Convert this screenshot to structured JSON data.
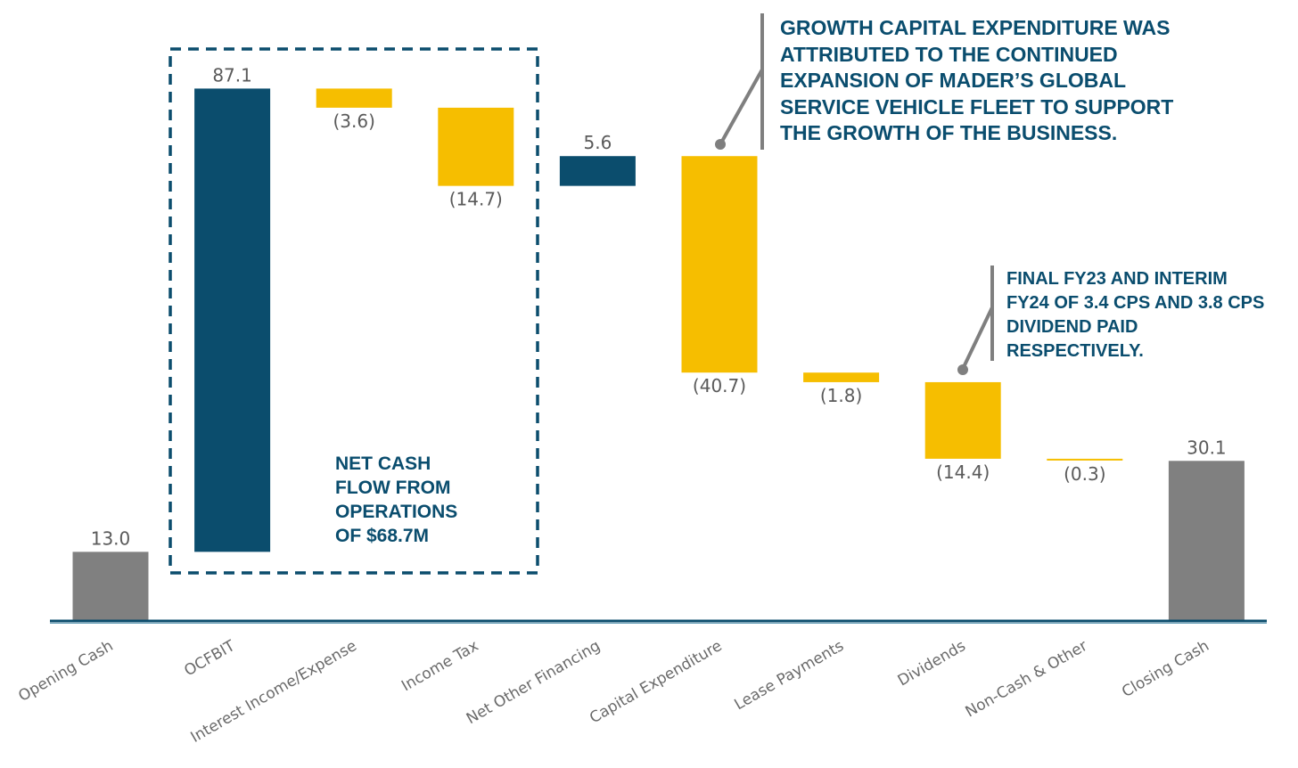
{
  "chart_data": {
    "type": "waterfall",
    "title": "",
    "xlabel": "",
    "ylabel": "",
    "ylim": [
      0,
      110
    ],
    "grid": false,
    "categories": [
      "Opening Cash",
      "OCFBIT",
      "Interest Income/Expense",
      "Income Tax",
      "Net Other Financing",
      "Capital Expenditure",
      "Lease Payments",
      "Dividends",
      "Non-Cash & Other",
      "Closing Cash"
    ],
    "values": [
      13.0,
      87.1,
      -3.6,
      -14.7,
      5.6,
      -40.7,
      -1.8,
      -14.4,
      -0.3,
      30.1
    ],
    "kinds": [
      "total",
      "increase",
      "decrease",
      "decrease",
      "increase",
      "decrease",
      "decrease",
      "decrease",
      "decrease",
      "total"
    ],
    "value_labels": [
      "13.0",
      "87.1",
      "(3.6)",
      "(14.7)",
      "5.6",
      "(40.7)",
      "(1.8)",
      "(14.4)",
      "(0.3)",
      "30.1"
    ],
    "colors": {
      "total": "#808080",
      "increase": "#0b4d6d",
      "decrease": "#f6be00",
      "axis": "#0b4d6d",
      "annotation": "#0b4d6d",
      "callout": "#7f7f7f"
    },
    "annotations": {
      "operations_box": [
        "NET CASH",
        "FLOW FROM",
        "OPERATIONS",
        "OF $68.7M"
      ],
      "capex_note": [
        "GROWTH CAPITAL EXPENDITURE WAS",
        "ATTRIBUTED TO THE CONTINUED",
        "EXPANSION OF MADER’S GLOBAL",
        "SERVICE VEHICLE FLEET TO SUPPORT",
        "THE GROWTH OF THE BUSINESS."
      ],
      "dividend_note": [
        "FINAL FY23 AND INTERIM",
        "FY24 OF 3.4 CPS AND 3.8 CPS",
        "DIVIDEND PAID",
        "RESPECTIVELY."
      ]
    }
  }
}
